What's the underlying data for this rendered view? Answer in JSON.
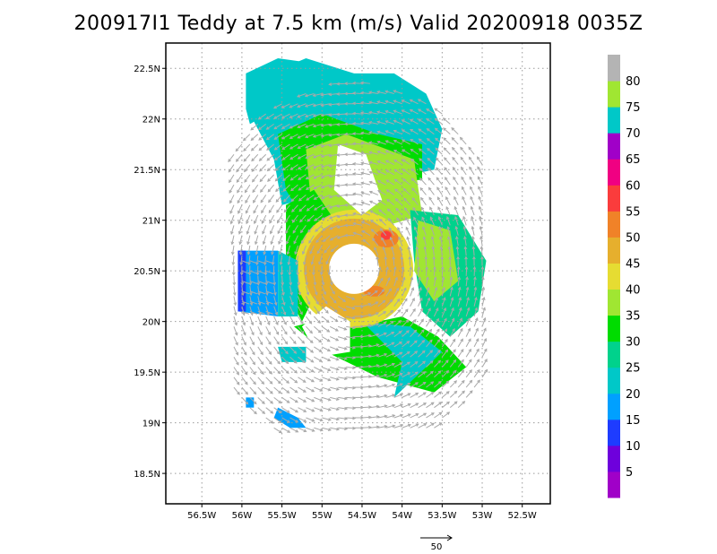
{
  "chart_data": {
    "type": "heatmap",
    "title": "200917I1 Teddy at 7.5 km (m/s) Valid 20200918 0035Z",
    "xlabel": "",
    "ylabel": "",
    "xlim": [
      -56.95,
      -52.15
    ],
    "ylim": [
      18.2,
      22.75
    ],
    "xticks": [
      -56.5,
      -56,
      -55.5,
      -55,
      -54.5,
      -54,
      -53.5,
      -53,
      -52.5
    ],
    "xtick_labels": [
      "56.5W",
      "56W",
      "55.5W",
      "55W",
      "54.5W",
      "54W",
      "53.5W",
      "53W",
      "52.5W"
    ],
    "yticks": [
      18.5,
      19,
      19.5,
      20,
      20.5,
      21,
      21.5,
      22,
      22.5
    ],
    "ytick_labels": [
      "18.5N",
      "19N",
      "19.5N",
      "20N",
      "20.5N",
      "21N",
      "21.5N",
      "22N",
      "22.5N"
    ],
    "grid": true,
    "storm_center": [
      -54.6,
      20.52
    ],
    "colorbar": {
      "levels": [
        5,
        10,
        15,
        20,
        25,
        30,
        35,
        40,
        45,
        50,
        55,
        60,
        65,
        70,
        75,
        80
      ],
      "labels": [
        "5",
        "10",
        "15",
        "20",
        "25",
        "30",
        "35",
        "40",
        "45",
        "50",
        "55",
        "60",
        "65",
        "70",
        "75",
        "80"
      ],
      "colors": [
        "#a000c8",
        "#6e00dc",
        "#1e3cff",
        "#00a0ff",
        "#00c8c8",
        "#00d28c",
        "#00dc00",
        "#a0e632",
        "#e6dc32",
        "#e6af2d",
        "#f08228",
        "#fa3c3c",
        "#f00082",
        "#a000c8",
        "#00c8c8",
        "#a0e632",
        "#b4b4b4"
      ]
    },
    "vector_scale_label": "50",
    "vector_scale_ms": 50
  }
}
